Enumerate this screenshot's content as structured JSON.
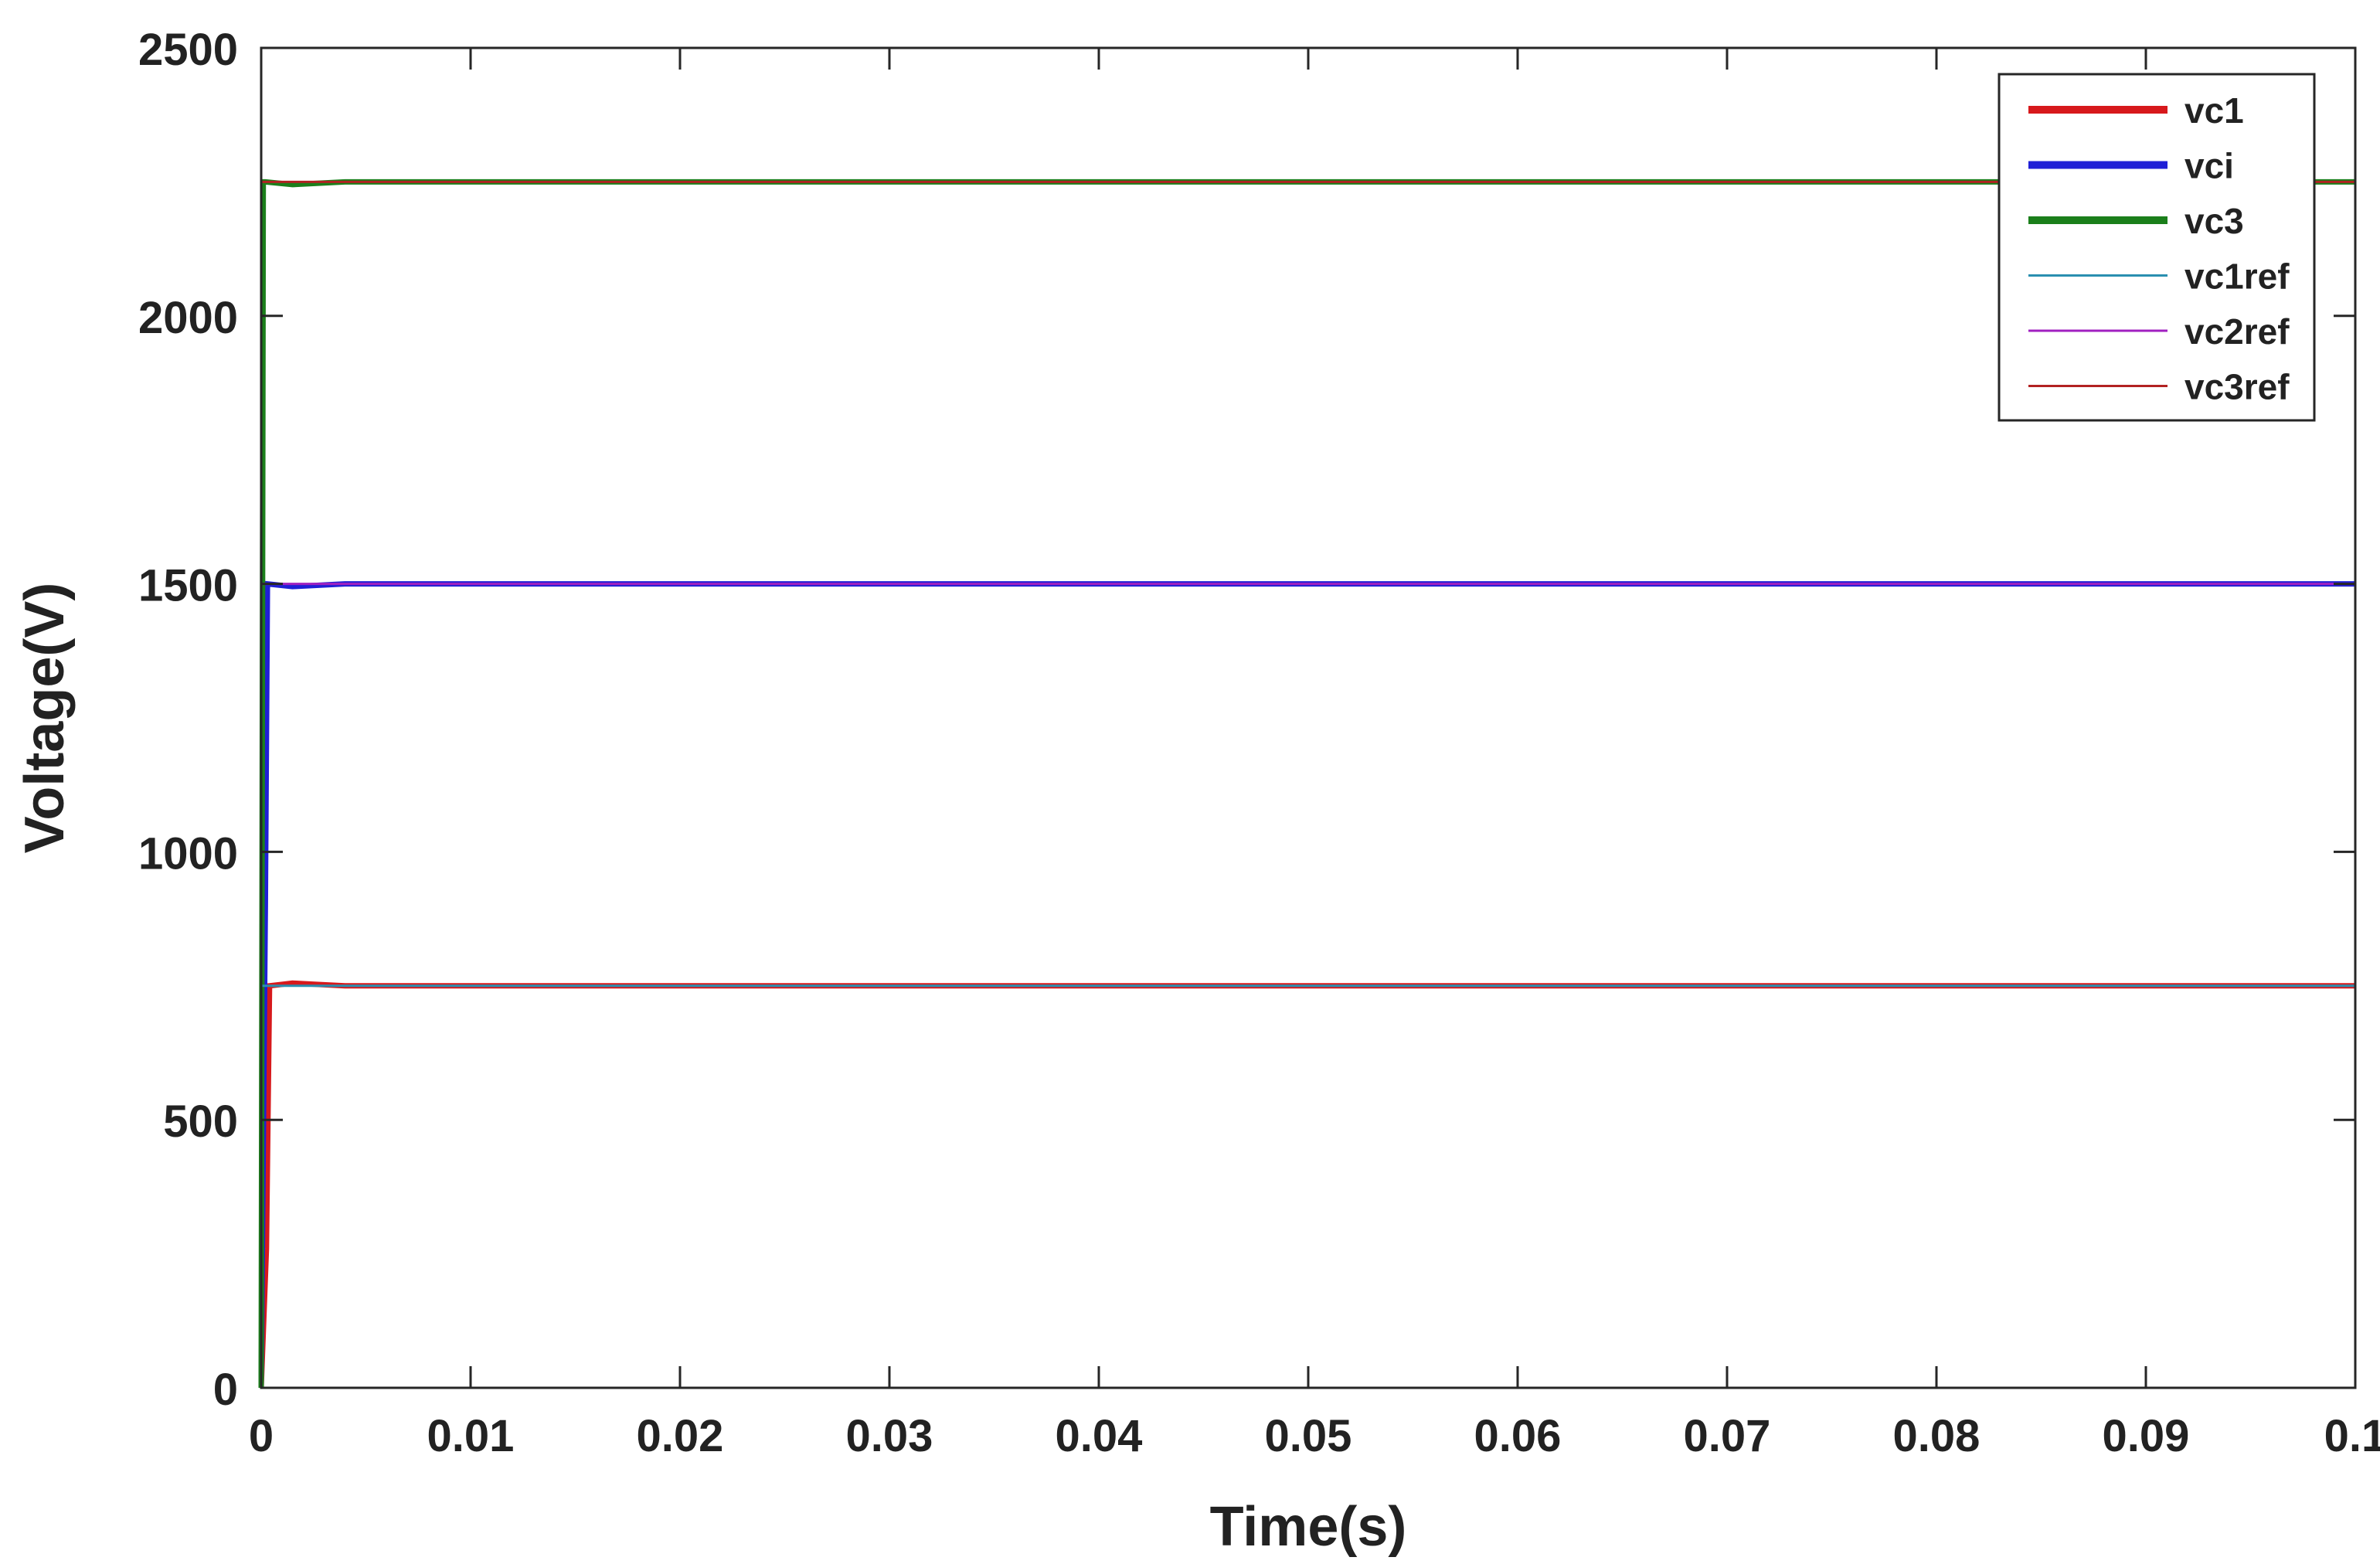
{
  "chart_data": {
    "type": "line",
    "title": "",
    "xlabel": "Time(s)",
    "ylabel": "Voltage(V)",
    "xlim": [
      0,
      0.1
    ],
    "ylim": [
      0,
      2500
    ],
    "xticks": [
      0,
      0.01,
      0.02,
      0.03,
      0.04,
      0.05,
      0.06,
      0.07,
      0.08,
      0.09,
      0.1
    ],
    "xtick_labels": [
      "0",
      "0.01",
      "0.02",
      "0.03",
      "0.04",
      "0.05",
      "0.06",
      "0.07",
      "0.08",
      "0.09",
      "0.1"
    ],
    "yticks": [
      0,
      500,
      1000,
      1500,
      2000,
      2500
    ],
    "ytick_labels": [
      "0",
      "500",
      "1000",
      "1500",
      "2000",
      "2500"
    ],
    "grid": false,
    "legend_position": "top-right",
    "series": [
      {
        "name": "vc1",
        "color": "#d7191c",
        "style": "thick",
        "x": [
          0,
          0.00025,
          0.0004,
          0.0015,
          0.004,
          0.008,
          0.1
        ],
        "y": [
          0,
          260,
          750,
          755,
          750,
          750,
          750
        ]
      },
      {
        "name": "vci",
        "color": "#1f1fd6",
        "style": "thick",
        "x": [
          0,
          0.0002,
          0.0003,
          0.0015,
          0.004,
          0.008,
          0.1
        ],
        "y": [
          0,
          900,
          1500,
          1495,
          1500,
          1500,
          1500
        ]
      },
      {
        "name": "vc3",
        "color": "#1b7f1b",
        "style": "thick",
        "x": [
          0,
          0.0001,
          0.0002,
          0.0015,
          0.004,
          0.008,
          0.1
        ],
        "y": [
          0,
          2250,
          2250,
          2245,
          2250,
          2250,
          2250
        ]
      },
      {
        "name": "vc1ref",
        "color": "#2a8fb0",
        "style": "thin",
        "x": [
          0,
          0.1
        ],
        "y": [
          750,
          750
        ]
      },
      {
        "name": "vc2ref",
        "color": "#a020c0",
        "style": "thin",
        "x": [
          0,
          0.1
        ],
        "y": [
          1500,
          1500
        ]
      },
      {
        "name": "vc3ref",
        "color": "#b22222",
        "style": "thin",
        "x": [
          0,
          0.1
        ],
        "y": [
          2250,
          2250
        ]
      }
    ]
  }
}
